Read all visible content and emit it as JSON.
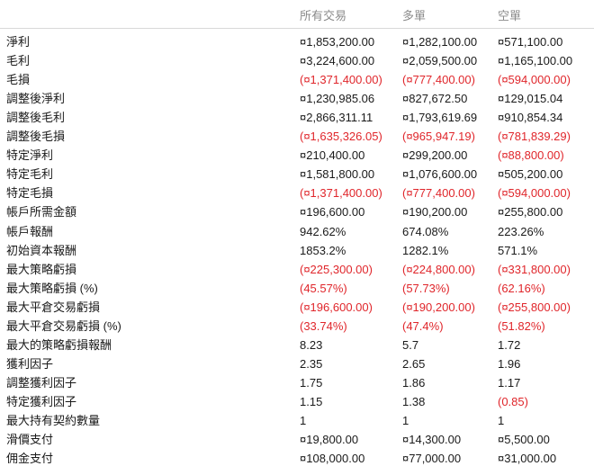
{
  "table": {
    "columns": [
      "所有交易",
      "多單",
      "空單"
    ],
    "rows": [
      [
        "淨利",
        "¤1,853,200.00",
        "¤1,282,100.00",
        "¤571,100.00"
      ],
      [
        "毛利",
        "¤3,224,600.00",
        "¤2,059,500.00",
        "¤1,165,100.00"
      ],
      [
        "毛損",
        "(¤1,371,400.00)",
        "(¤777,400.00)",
        "(¤594,000.00)"
      ],
      [
        "調整後淨利",
        "¤1,230,985.06",
        "¤827,672.50",
        "¤129,015.04"
      ],
      [
        "調整後毛利",
        "¤2,866,311.11",
        "¤1,793,619.69",
        "¤910,854.34"
      ],
      [
        "調整後毛損",
        "(¤1,635,326.05)",
        "(¤965,947.19)",
        "(¤781,839.29)"
      ],
      [
        "特定淨利",
        "¤210,400.00",
        "¤299,200.00",
        "(¤88,800.00)"
      ],
      [
        "特定毛利",
        "¤1,581,800.00",
        "¤1,076,600.00",
        "¤505,200.00"
      ],
      [
        "特定毛損",
        "(¤1,371,400.00)",
        "(¤777,400.00)",
        "(¤594,000.00)"
      ],
      [
        "帳戶所需金額",
        "¤196,600.00",
        "¤190,200.00",
        "¤255,800.00"
      ],
      [
        "帳戶報酬",
        "942.62%",
        "674.08%",
        "223.26%"
      ],
      [
        "初始資本報酬",
        "1853.2%",
        "1282.1%",
        "571.1%"
      ],
      [
        "最大策略虧損",
        "(¤225,300.00)",
        "(¤224,800.00)",
        "(¤331,800.00)"
      ],
      [
        "最大策略虧損 (%)",
        "(45.57%)",
        "(57.73%)",
        "(62.16%)"
      ],
      [
        "最大平倉交易虧損",
        "(¤196,600.00)",
        "(¤190,200.00)",
        "(¤255,800.00)"
      ],
      [
        "最大平倉交易虧損 (%)",
        "(33.74%)",
        "(47.4%)",
        "(51.82%)"
      ],
      [
        "最大的策略虧損報酬",
        "8.23",
        "5.7",
        "1.72"
      ],
      [
        "獲利因子",
        "2.35",
        "2.65",
        "1.96"
      ],
      [
        "調整獲利因子",
        "1.75",
        "1.86",
        "1.17"
      ],
      [
        "特定獲利因子",
        "1.15",
        "1.38",
        "(0.85)"
      ],
      [
        "最大持有契約數量",
        "1",
        "1",
        "1"
      ],
      [
        "滑價支付",
        "¤19,800.00",
        "¤14,300.00",
        "¤5,500.00"
      ],
      [
        "佣金支付",
        "¤108,000.00",
        "¤77,000.00",
        "¤31,000.00"
      ]
    ]
  }
}
